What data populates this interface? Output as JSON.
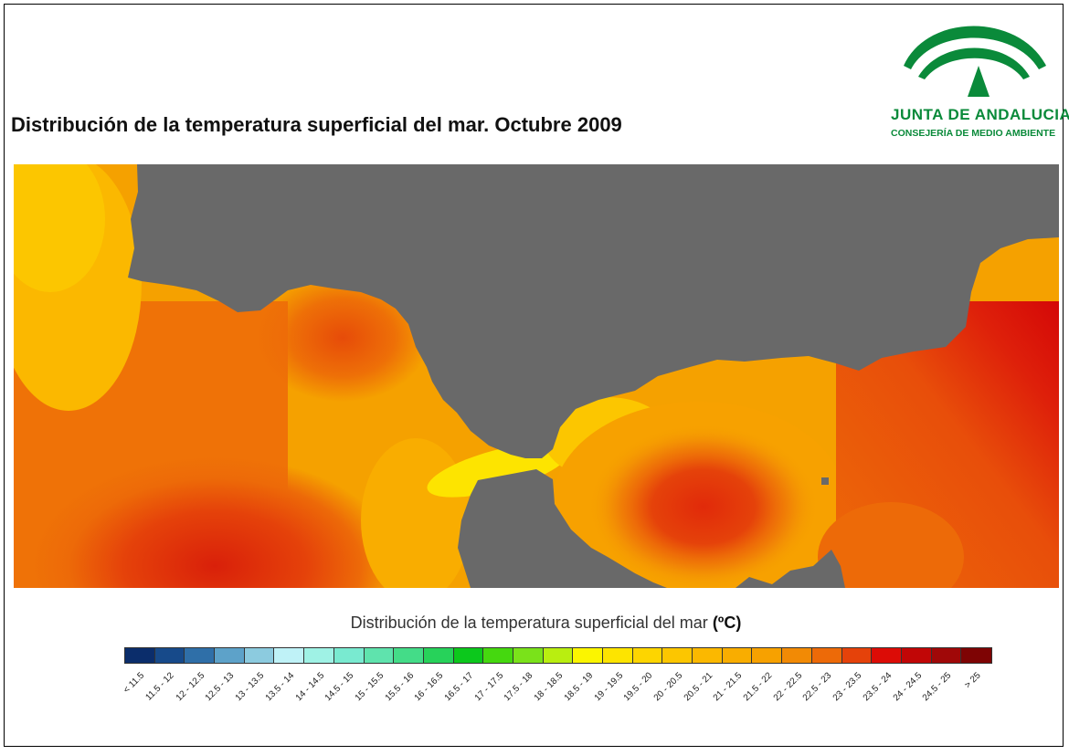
{
  "title": "Distribución de la temperatura superficial del mar. Octubre 2009",
  "logo": {
    "name": "JUNTA DE ANDALUCIA",
    "department": "CONSEJERÍA DE MEDIO AMBIENTE",
    "icon": "junta-andalucia-arch-icon",
    "color": "#0a8a3a"
  },
  "map": {
    "land_color": "#696969",
    "description_colors": {
      "sea_west": "#f5a100",
      "sea_hot_core": "#e02a0a",
      "strait": "#f5e500"
    }
  },
  "legend": {
    "title": "Distribución de la temperatura superficial del mar",
    "unit": "(ºC)",
    "classes": [
      {
        "label": "< 11.5",
        "color": "#0b2d6b"
      },
      {
        "label": "11.5 - 12",
        "color": "#174a8a"
      },
      {
        "label": "12 - 12.5",
        "color": "#2f6fa8"
      },
      {
        "label": "12.5 - 13",
        "color": "#5da2c9"
      },
      {
        "label": "13 - 13.5",
        "color": "#8ccbdf"
      },
      {
        "label": "13.5 - 14",
        "color": "#bff2f7"
      },
      {
        "label": "14 - 14.5",
        "color": "#9ff2e5"
      },
      {
        "label": "14.5 - 15",
        "color": "#79ead0"
      },
      {
        "label": "15 - 15.5",
        "color": "#5fe3ad"
      },
      {
        "label": "15.5 - 16",
        "color": "#44dc88"
      },
      {
        "label": "16 - 16.5",
        "color": "#27d25a"
      },
      {
        "label": "16.5 - 17",
        "color": "#0cc81c"
      },
      {
        "label": "17 - 17.5",
        "color": "#45d80f"
      },
      {
        "label": "17.5 - 18",
        "color": "#7ae21a"
      },
      {
        "label": "18 - 18.5",
        "color": "#b9ee10"
      },
      {
        "label": "18.5 - 19",
        "color": "#fbf500"
      },
      {
        "label": "19 - 19.5",
        "color": "#fde400"
      },
      {
        "label": "19.5 - 20",
        "color": "#fdd500"
      },
      {
        "label": "20 - 20.5",
        "color": "#fcc600"
      },
      {
        "label": "20.5 - 21",
        "color": "#fbb800"
      },
      {
        "label": "21 - 21.5",
        "color": "#f9ad00"
      },
      {
        "label": "21.5 - 22",
        "color": "#f7a100"
      },
      {
        "label": "22 - 22.5",
        "color": "#f28a05"
      },
      {
        "label": "22.5 - 23",
        "color": "#ed6a08"
      },
      {
        "label": "23 - 23.5",
        "color": "#e5420a"
      },
      {
        "label": "23.5 - 24",
        "color": "#dc0c06"
      },
      {
        "label": "24 - 24.5",
        "color": "#c10606"
      },
      {
        "label": "24.5 - 25",
        "color": "#a00808"
      },
      {
        "label": "> 25",
        "color": "#7e0404"
      }
    ]
  }
}
